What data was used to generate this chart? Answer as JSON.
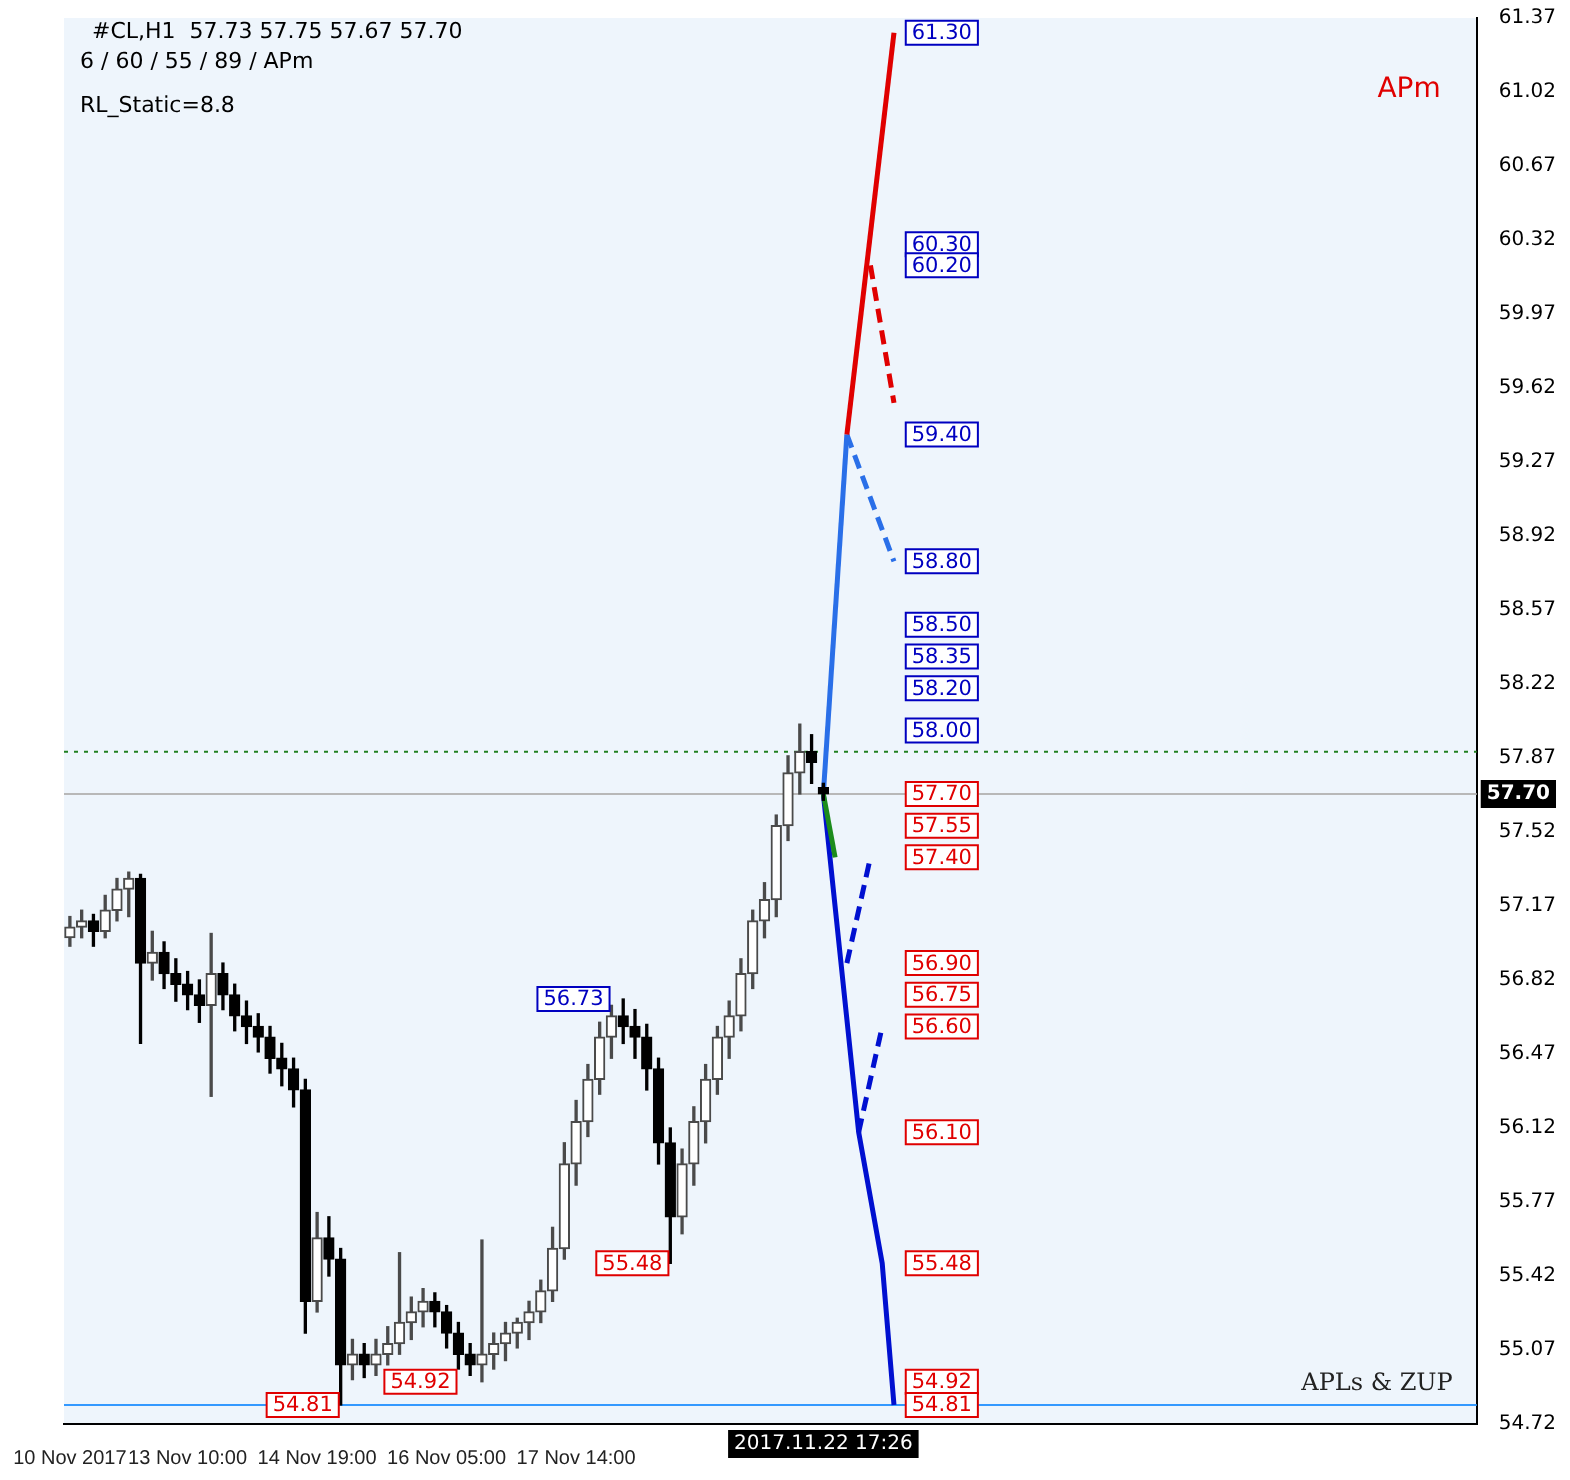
{
  "chart_data": {
    "type": "candlestick",
    "title": "#CL,H1  57.73 57.75 57.67 57.70",
    "subtitle": "6 / 60 / 55 / 89 / APm",
    "categories": [
      "10 Nov 2017",
      null,
      null,
      null,
      null,
      null,
      null,
      null,
      null,
      null,
      "13 Nov 10:00",
      null,
      null,
      null,
      null,
      null,
      null,
      null,
      null,
      null,
      null,
      "14 Nov 19:00",
      null,
      null,
      null,
      null,
      null,
      null,
      null,
      null,
      null,
      null,
      "16 Nov 05:00",
      null,
      null,
      null,
      null,
      null,
      null,
      null,
      null,
      null,
      null,
      "17 Nov 14:00",
      null,
      null,
      null,
      null,
      null,
      null,
      null,
      null,
      null,
      null,
      null,
      null,
      null,
      null,
      null,
      null,
      null,
      null,
      null,
      null,
      null,
      null,
      null,
      null,
      null,
      null,
      null,
      null,
      null,
      null,
      null,
      null,
      null,
      null,
      null,
      null,
      null,
      null,
      null,
      null,
      null,
      null,
      null,
      null,
      null,
      null,
      null,
      null,
      null,
      null,
      null,
      null,
      null,
      null,
      null,
      null,
      null,
      null,
      null,
      null,
      null,
      null,
      null,
      null,
      null,
      null,
      null,
      null,
      null,
      null,
      null,
      null,
      null,
      null,
      null,
      null
    ],
    "colors": [
      "#4a4a4a",
      "#4a4a4a",
      "#000000",
      "#4a4a4a",
      "#4a4a4a",
      "#4a4a4a",
      "#000000",
      "#4a4a4a",
      "#000000",
      "#000000",
      "#000000",
      "#000000",
      "#4a4a4a",
      "#000000",
      "#000000",
      "#000000",
      "#000000",
      "#000000",
      "#000000",
      "#000000",
      "#000000",
      "#4a4a4a",
      "#000000",
      "#000000",
      "#4a4a4a",
      "#000000",
      "#4a4a4a",
      "#4a4a4a",
      "#4a4a4a",
      "#4a4a4a",
      "#4a4a4a",
      "#000000",
      "#000000",
      "#000000",
      "#000000",
      "#4a4a4a",
      "#4a4a4a",
      "#4a4a4a",
      "#4a4a4a",
      "#4a4a4a",
      "#4a4a4a",
      "#4a4a4a",
      "#4a4a4a",
      "#4a4a4a",
      "#4a4a4a",
      "#4a4a4a",
      "#4a4a4a",
      "#000000",
      "#000000",
      "#000000",
      "#000000",
      "#000000",
      "#4a4a4a",
      "#4a4a4a",
      "#4a4a4a",
      "#4a4a4a",
      "#4a4a4a",
      "#4a4a4a",
      "#4a4a4a",
      "#4a4a4a",
      "#4a4a4a",
      "#4a4a4a",
      "#4a4a4a",
      "#000000",
      "#000000",
      null,
      null,
      null,
      null,
      null,
      null,
      null,
      null,
      null,
      null,
      null,
      null,
      null,
      null,
      null,
      null,
      null,
      null,
      null,
      null,
      null,
      null,
      null,
      null,
      null,
      null,
      null,
      null,
      null,
      null,
      null,
      null,
      null,
      null,
      null,
      null,
      null,
      null,
      null,
      null,
      null,
      null,
      null,
      null,
      null,
      null,
      null,
      null,
      null,
      null,
      null,
      null,
      null,
      null,
      null
    ],
    "ohlc": [
      [
        57.02,
        57.12,
        56.98,
        57.07
      ],
      [
        57.07,
        57.15,
        57.02,
        57.1
      ],
      [
        57.1,
        57.13,
        56.98,
        57.05
      ],
      [
        57.05,
        57.22,
        57.02,
        57.15
      ],
      [
        57.15,
        57.3,
        57.1,
        57.25
      ],
      [
        57.25,
        57.33,
        57.12,
        57.3
      ],
      [
        57.3,
        57.32,
        56.52,
        56.9
      ],
      [
        56.9,
        57.05,
        56.82,
        56.95
      ],
      [
        56.95,
        57.0,
        56.78,
        56.85
      ],
      [
        56.85,
        56.92,
        56.72,
        56.8
      ],
      [
        56.8,
        56.86,
        56.68,
        56.75
      ],
      [
        56.75,
        56.82,
        56.62,
        56.7
      ],
      [
        56.7,
        57.04,
        56.27,
        56.85
      ],
      [
        56.85,
        56.9,
        56.68,
        56.75
      ],
      [
        56.75,
        56.8,
        56.58,
        56.65
      ],
      [
        56.65,
        56.72,
        56.52,
        56.6
      ],
      [
        56.6,
        56.66,
        56.48,
        56.55
      ],
      [
        56.55,
        56.6,
        56.38,
        56.45
      ],
      [
        56.45,
        56.52,
        56.32,
        56.4
      ],
      [
        56.4,
        56.45,
        56.22,
        56.3
      ],
      [
        56.3,
        56.35,
        55.15,
        55.3
      ],
      [
        55.3,
        55.72,
        55.25,
        55.6
      ],
      [
        55.6,
        55.7,
        55.42,
        55.5
      ],
      [
        55.5,
        55.55,
        54.81,
        55.0
      ],
      [
        55.0,
        55.12,
        54.93,
        55.05
      ],
      [
        55.05,
        55.1,
        54.94,
        55.0
      ],
      [
        55.0,
        55.12,
        54.95,
        55.05
      ],
      [
        55.05,
        55.18,
        55.0,
        55.1
      ],
      [
        55.1,
        55.53,
        55.05,
        55.2
      ],
      [
        55.2,
        55.32,
        55.12,
        55.25
      ],
      [
        55.25,
        55.36,
        55.18,
        55.3
      ],
      [
        55.3,
        55.34,
        55.18,
        55.25
      ],
      [
        55.25,
        55.28,
        55.08,
        55.15
      ],
      [
        55.15,
        55.2,
        54.98,
        55.05
      ],
      [
        55.05,
        55.1,
        54.95,
        55.0
      ],
      [
        55.0,
        55.59,
        54.92,
        55.05
      ],
      [
        55.05,
        55.15,
        54.98,
        55.1
      ],
      [
        55.1,
        55.2,
        55.02,
        55.15
      ],
      [
        55.15,
        55.22,
        55.08,
        55.2
      ],
      [
        55.2,
        55.3,
        55.12,
        55.25
      ],
      [
        55.25,
        55.4,
        55.2,
        55.35
      ],
      [
        55.35,
        55.65,
        55.3,
        55.55
      ],
      [
        55.55,
        56.05,
        55.5,
        55.95
      ],
      [
        55.95,
        56.25,
        55.85,
        56.15
      ],
      [
        56.15,
        56.42,
        56.08,
        56.35
      ],
      [
        56.35,
        56.62,
        56.28,
        56.55
      ],
      [
        56.55,
        56.7,
        56.45,
        56.65
      ],
      [
        56.65,
        56.73,
        56.52,
        56.6
      ],
      [
        56.6,
        56.68,
        56.45,
        56.55
      ],
      [
        56.55,
        56.61,
        56.3,
        56.4
      ],
      [
        56.4,
        56.45,
        55.95,
        56.05
      ],
      [
        56.05,
        56.12,
        55.48,
        55.7
      ],
      [
        55.7,
        56.02,
        55.62,
        55.95
      ],
      [
        55.95,
        56.22,
        55.85,
        56.15
      ],
      [
        56.15,
        56.42,
        56.05,
        56.35
      ],
      [
        56.35,
        56.6,
        56.28,
        56.55
      ],
      [
        56.55,
        56.72,
        56.45,
        56.65
      ],
      [
        56.65,
        56.92,
        56.58,
        56.85
      ],
      [
        56.85,
        57.15,
        56.78,
        57.1
      ],
      [
        57.1,
        57.28,
        57.02,
        57.2
      ],
      [
        57.2,
        57.6,
        57.12,
        57.55
      ],
      [
        57.55,
        57.88,
        57.48,
        57.8
      ],
      [
        57.8,
        58.03,
        57.7,
        57.9
      ],
      [
        57.9,
        57.98,
        57.75,
        57.85
      ],
      [
        57.73,
        57.75,
        57.67,
        57.7
      ],
      null,
      null,
      null,
      null,
      null,
      null,
      null,
      null,
      null,
      null,
      null,
      null,
      null,
      null,
      null,
      null,
      null,
      null,
      null,
      null,
      null,
      null,
      null,
      null,
      null,
      null,
      null,
      null,
      null,
      null,
      null,
      null,
      null,
      null,
      null,
      null,
      null,
      null,
      null,
      null,
      null,
      null,
      null,
      null,
      null,
      null,
      null,
      null,
      null,
      null,
      null,
      null,
      null,
      null,
      null
    ],
    "series": [
      {
        "type": "line",
        "color": "#e00000",
        "values": [
          null,
          null,
          null,
          null,
          null,
          null,
          null,
          null,
          null,
          null,
          null,
          null,
          null,
          null,
          null,
          null,
          null,
          null,
          null,
          null,
          null,
          null,
          null,
          null,
          null,
          null,
          null,
          null,
          null,
          null,
          null,
          null,
          null,
          null,
          null,
          null,
          null,
          null,
          null,
          null,
          null,
          null,
          null,
          null,
          null,
          null,
          null,
          null,
          null,
          null,
          null,
          null,
          null,
          null,
          null,
          null,
          null,
          null,
          null,
          null,
          null,
          null,
          null,
          null,
          null,
          null,
          59.4,
          null,
          null,
          null,
          61.3,
          null,
          null,
          null,
          null,
          null,
          null,
          null,
          null,
          null,
          null,
          null,
          null,
          null,
          null,
          null,
          null,
          null,
          null,
          null,
          null,
          null,
          null,
          null,
          null,
          null,
          null,
          null,
          null,
          null,
          null,
          null,
          null,
          null,
          null,
          null,
          null,
          null,
          null,
          null,
          null,
          null,
          null,
          null,
          null,
          null,
          null,
          null,
          null,
          null
        ]
      },
      {
        "type": "line",
        "color": "#e00000",
        "line_style": "dashed",
        "values": [
          null,
          null,
          null,
          null,
          null,
          null,
          null,
          null,
          null,
          null,
          null,
          null,
          null,
          null,
          null,
          null,
          null,
          null,
          null,
          null,
          null,
          null,
          null,
          null,
          null,
          null,
          null,
          null,
          null,
          null,
          null,
          null,
          null,
          null,
          null,
          null,
          null,
          null,
          null,
          null,
          null,
          null,
          null,
          null,
          null,
          null,
          null,
          null,
          null,
          null,
          null,
          null,
          null,
          null,
          null,
          null,
          null,
          null,
          null,
          null,
          null,
          null,
          null,
          null,
          null,
          null,
          null,
          null,
          60.2,
          null,
          59.55,
          null,
          null,
          null,
          null,
          null,
          null,
          null,
          null,
          null,
          null,
          null,
          null,
          null,
          null,
          null,
          null,
          null,
          null,
          null,
          null,
          null,
          null,
          null,
          null,
          null,
          null,
          null,
          null,
          null,
          null,
          null,
          null,
          null,
          null,
          null,
          null,
          null,
          null,
          null,
          null,
          null,
          null,
          null,
          null,
          null,
          null,
          null,
          null,
          null
        ]
      },
      {
        "type": "line",
        "color": "#2a6fe8",
        "values": [
          null,
          null,
          null,
          null,
          null,
          null,
          null,
          null,
          null,
          null,
          null,
          null,
          null,
          null,
          null,
          null,
          null,
          null,
          null,
          null,
          null,
          null,
          null,
          null,
          null,
          null,
          null,
          null,
          null,
          null,
          null,
          null,
          null,
          null,
          null,
          null,
          null,
          null,
          null,
          null,
          null,
          null,
          null,
          null,
          null,
          null,
          null,
          null,
          null,
          null,
          null,
          null,
          null,
          null,
          null,
          null,
          null,
          null,
          null,
          null,
          null,
          null,
          null,
          null,
          57.7,
          null,
          59.4,
          null,
          null,
          null,
          null,
          null,
          null,
          null,
          null,
          null,
          null,
          null,
          null,
          null,
          null,
          null,
          null,
          null,
          null,
          null,
          null,
          null,
          null,
          null,
          null,
          null,
          null,
          null,
          null,
          null,
          null,
          null,
          null,
          null,
          null,
          null,
          null,
          null,
          null,
          null,
          null,
          null,
          null,
          null,
          null,
          null,
          null,
          null,
          null,
          null,
          null,
          null,
          null,
          null
        ]
      },
      {
        "type": "line",
        "color": "#2a6fe8",
        "line_style": "dashed",
        "values": [
          null,
          null,
          null,
          null,
          null,
          null,
          null,
          null,
          null,
          null,
          null,
          null,
          null,
          null,
          null,
          null,
          null,
          null,
          null,
          null,
          null,
          null,
          null,
          null,
          null,
          null,
          null,
          null,
          null,
          null,
          null,
          null,
          null,
          null,
          null,
          null,
          null,
          null,
          null,
          null,
          null,
          null,
          null,
          null,
          null,
          null,
          null,
          null,
          null,
          null,
          null,
          null,
          null,
          null,
          null,
          null,
          null,
          null,
          null,
          null,
          null,
          null,
          null,
          null,
          null,
          null,
          59.4,
          null,
          null,
          null,
          58.8,
          null,
          null,
          null,
          null,
          null,
          null,
          null,
          null,
          null,
          null,
          null,
          null,
          null,
          null,
          null,
          null,
          null,
          null,
          null,
          null,
          null,
          null,
          null,
          null,
          null,
          null,
          null,
          null,
          null,
          null,
          null,
          null,
          null,
          null,
          null,
          null,
          null,
          null,
          null,
          null,
          null,
          null,
          null,
          null,
          null,
          null,
          null,
          null,
          null
        ]
      },
      {
        "type": "line",
        "color": "#1c8c1c",
        "values": [
          null,
          null,
          null,
          null,
          null,
          null,
          null,
          null,
          null,
          null,
          null,
          null,
          null,
          null,
          null,
          null,
          null,
          null,
          null,
          null,
          null,
          null,
          null,
          null,
          null,
          null,
          null,
          null,
          null,
          null,
          null,
          null,
          null,
          null,
          null,
          null,
          null,
          null,
          null,
          null,
          null,
          null,
          null,
          null,
          null,
          null,
          null,
          null,
          null,
          null,
          null,
          null,
          null,
          null,
          null,
          null,
          null,
          null,
          null,
          null,
          null,
          null,
          null,
          null,
          57.7,
          57.4,
          null,
          null,
          null,
          null,
          null,
          null,
          null,
          null,
          null,
          null,
          null,
          null,
          null,
          null,
          null,
          null,
          null,
          null,
          null,
          null,
          null,
          null,
          null,
          null,
          null,
          null,
          null,
          null,
          null,
          null,
          null,
          null,
          null,
          null,
          null,
          null,
          null,
          null,
          null,
          null,
          null,
          null,
          null,
          null,
          null,
          null,
          null,
          null,
          null,
          null,
          null,
          null,
          null,
          null
        ]
      },
      {
        "type": "line",
        "color": "#0010d0",
        "values": [
          null,
          null,
          null,
          null,
          null,
          null,
          null,
          null,
          null,
          null,
          null,
          null,
          null,
          null,
          null,
          null,
          null,
          null,
          null,
          null,
          null,
          null,
          null,
          null,
          null,
          null,
          null,
          null,
          null,
          null,
          null,
          null,
          null,
          null,
          null,
          null,
          null,
          null,
          null,
          null,
          null,
          null,
          null,
          null,
          null,
          null,
          null,
          null,
          null,
          null,
          null,
          null,
          null,
          null,
          null,
          null,
          null,
          null,
          null,
          null,
          null,
          null,
          null,
          null,
          57.7,
          null,
          null,
          56.1,
          null,
          55.48,
          54.81,
          null,
          null,
          null,
          null,
          null,
          null,
          null,
          null,
          null,
          null,
          null,
          null,
          null,
          null,
          null,
          null,
          null,
          null,
          null,
          null,
          null,
          null,
          null,
          null,
          null,
          null,
          null,
          null,
          null,
          null,
          null,
          null,
          null,
          null,
          null,
          null,
          null,
          null,
          null,
          null,
          null,
          null,
          null,
          null,
          null,
          null,
          null,
          null,
          null
        ]
      },
      {
        "type": "line",
        "color": "#0010d0",
        "line_style": "dashed",
        "values": [
          null,
          null,
          null,
          null,
          null,
          null,
          null,
          null,
          null,
          null,
          null,
          null,
          null,
          null,
          null,
          null,
          null,
          null,
          null,
          null,
          null,
          null,
          null,
          null,
          null,
          null,
          null,
          null,
          null,
          null,
          null,
          null,
          null,
          null,
          null,
          null,
          null,
          null,
          null,
          null,
          null,
          null,
          null,
          null,
          null,
          null,
          null,
          null,
          null,
          null,
          null,
          null,
          null,
          null,
          null,
          null,
          null,
          null,
          null,
          null,
          null,
          null,
          null,
          null,
          null,
          null,
          56.9,
          null,
          57.4,
          null,
          null,
          null,
          null,
          null,
          null,
          null,
          null,
          null,
          null,
          null,
          null,
          null,
          null,
          null,
          null,
          null,
          null,
          null,
          null,
          null,
          null,
          null,
          null,
          null,
          null,
          null,
          null,
          null,
          null,
          null,
          null,
          null,
          null,
          null,
          null,
          null,
          null,
          null,
          null,
          null,
          null,
          null,
          null,
          null,
          null,
          null,
          null,
          null,
          null,
          null
        ]
      },
      {
        "type": "line",
        "color": "#0010d0",
        "line_style": "dashed",
        "values": [
          null,
          null,
          null,
          null,
          null,
          null,
          null,
          null,
          null,
          null,
          null,
          null,
          null,
          null,
          null,
          null,
          null,
          null,
          null,
          null,
          null,
          null,
          null,
          null,
          null,
          null,
          null,
          null,
          null,
          null,
          null,
          null,
          null,
          null,
          null,
          null,
          null,
          null,
          null,
          null,
          null,
          null,
          null,
          null,
          null,
          null,
          null,
          null,
          null,
          null,
          null,
          null,
          null,
          null,
          null,
          null,
          null,
          null,
          null,
          null,
          null,
          null,
          null,
          null,
          null,
          null,
          null,
          56.1,
          null,
          56.6,
          null,
          null,
          null,
          null,
          null,
          null,
          null,
          null,
          null,
          null,
          null,
          null,
          null,
          null,
          null,
          null,
          null,
          null,
          null,
          null,
          null,
          null,
          null,
          null,
          null,
          null,
          null,
          null,
          null,
          null,
          null,
          null,
          null,
          null,
          null,
          null,
          null,
          null,
          null,
          null,
          null,
          null,
          null,
          null,
          null,
          null,
          null,
          null,
          null,
          null
        ]
      }
    ],
    "ylim": [
      54.72,
      61.37
    ],
    "yticks": [
      54.72,
      55.07,
      55.42,
      55.77,
      56.12,
      56.47,
      56.82,
      57.17,
      57.52,
      57.87,
      58.22,
      58.57,
      58.92,
      59.27,
      59.62,
      59.97,
      60.32,
      60.67,
      61.02,
      61.37
    ],
    "ref_lines": [
      {
        "axis": "y",
        "value": 57.7,
        "label": "57.70",
        "color": "#b8b8b8"
      },
      {
        "axis": "y",
        "value": 57.9,
        "color": "#208020",
        "line_style": "dotted"
      },
      {
        "axis": "y",
        "value": 54.81,
        "color": "#3399ff"
      }
    ],
    "annotations": [
      "RL_Static=8.8",
      "APm",
      "APLs & ZUP",
      "2017.11.22 17:26",
      {
        "text": "61.30",
        "y": 61.3
      },
      {
        "text": "60.30",
        "y": 60.3
      },
      {
        "text": "60.20",
        "y": 60.2
      },
      {
        "text": "59.40",
        "y": 59.4
      },
      {
        "text": "58.80",
        "y": 58.8
      },
      {
        "text": "58.50",
        "y": 58.5
      },
      {
        "text": "58.35",
        "y": 58.35
      },
      {
        "text": "58.20",
        "y": 58.2
      },
      {
        "text": "58.00",
        "y": 58.0
      },
      {
        "text": "57.70",
        "y": 57.7
      },
      {
        "text": "57.55",
        "y": 57.55
      },
      {
        "text": "57.40",
        "y": 57.4
      },
      {
        "text": "56.90",
        "y": 56.9
      },
      {
        "text": "56.75",
        "y": 56.75
      },
      {
        "text": "56.60",
        "y": 56.6
      },
      {
        "text": "56.10",
        "y": 56.1
      },
      {
        "text": "55.48",
        "y": 55.48
      },
      {
        "text": "54.92",
        "y": 54.92
      },
      {
        "text": "54.81",
        "y": 54.81
      },
      {
        "text": "56.73",
        "y": 56.73
      },
      {
        "text": "55.48",
        "y": 55.48
      },
      {
        "text": "54.92",
        "y": 54.92
      },
      {
        "text": "54.81",
        "y": 54.81
      }
    ],
    "grid": false,
    "legend": false
  }
}
